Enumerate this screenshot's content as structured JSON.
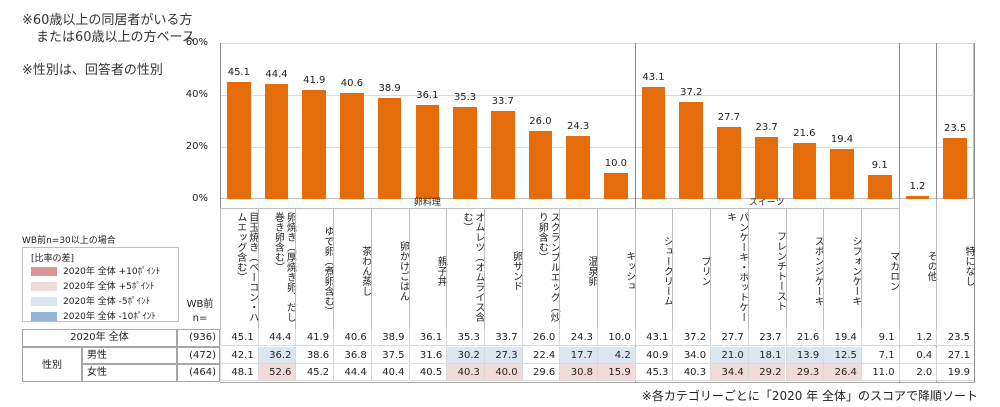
{
  "notes": {
    "base_line1": "※60歳以上の同居者がいる方",
    "base_line2": "または60歳以上の方ベース",
    "gender_note": "※性別は、回答者の性別",
    "sort_note": "※各カテゴリーごとに「2020 年  全体」のスコアで降順ソート"
  },
  "legend": {
    "condition": "WB前n=30以上の場合",
    "title": "[比率の差]",
    "items": [
      {
        "label": "2020年  全体  +10ﾎﾟｲﾝﾄ",
        "color": "#da9694",
        "key": "pos10"
      },
      {
        "label": "2020年  全体  +5ﾎﾟｲﾝﾄ",
        "color": "#f2dcdb",
        "key": "pos5"
      },
      {
        "label": "2020年  全体  -5ﾎﾟｲﾝﾄ",
        "color": "#dce6f1",
        "key": "neg5"
      },
      {
        "label": "2020年  全体  -10ﾎﾟｲﾝﾄ",
        "color": "#95b3d7",
        "key": "neg10"
      }
    ]
  },
  "table": {
    "n_header_1": "WB前",
    "n_header_2": "n=",
    "gender_label": "性別",
    "rows": [
      {
        "label": "2020年  全体",
        "n": "(936)",
        "values": [
          "45.1",
          "44.4",
          "41.9",
          "40.6",
          "38.9",
          "36.1",
          "35.3",
          "33.7",
          "26.0",
          "24.3",
          "10.0",
          "43.1",
          "37.2",
          "27.7",
          "23.7",
          "21.6",
          "19.4",
          "9.1",
          "1.2",
          "23.5"
        ],
        "hl": []
      },
      {
        "label": "男性",
        "n": "(472)",
        "values": [
          "42.1",
          "36.2",
          "38.6",
          "36.8",
          "37.5",
          "31.6",
          "30.2",
          "27.3",
          "22.4",
          "17.7",
          "4.2",
          "40.9",
          "34.0",
          "21.0",
          "18.1",
          "13.9",
          "12.5",
          "7.1",
          "0.4",
          "27.1"
        ],
        "hl": [
          "",
          "neg5",
          "",
          "",
          "",
          "",
          "neg5",
          "neg5",
          "",
          "neg5",
          "neg5",
          "",
          "",
          "neg5",
          "neg5",
          "neg5",
          "neg5",
          "",
          "",
          ""
        ]
      },
      {
        "label": "女性",
        "n": "(464)",
        "values": [
          "48.1",
          "52.6",
          "45.2",
          "44.4",
          "40.4",
          "40.5",
          "40.3",
          "40.0",
          "29.6",
          "30.8",
          "15.9",
          "45.3",
          "40.3",
          "34.4",
          "29.2",
          "29.3",
          "26.4",
          "11.0",
          "2.0",
          "19.9"
        ],
        "hl": [
          "",
          "pos5",
          "",
          "",
          "",
          "",
          "pos5",
          "pos5",
          "",
          "pos5",
          "pos5",
          "",
          "",
          "pos5",
          "pos5",
          "pos5",
          "pos5",
          "",
          "",
          ""
        ]
      }
    ]
  },
  "chart_data": {
    "type": "bar",
    "title": "",
    "ylim": [
      0,
      60
    ],
    "yticks": [
      "0%",
      "20%",
      "40%",
      "60%"
    ],
    "groups": [
      {
        "name": "卵料理",
        "count": 11
      },
      {
        "name": "スイーツ",
        "count": 7
      },
      {
        "name": "",
        "count": 1
      },
      {
        "name": "",
        "count": 1
      }
    ],
    "categories": [
      "目玉焼き（ベーコン・ハムエッグ含む）",
      "卵焼き（厚焼き卵、だし巻き卵含む）",
      "ゆで卵（煮卵含む）",
      "茶わん蒸し",
      "卵かけごはん",
      "親子丼",
      "オムレツ（オムライス含む）",
      "卵サンド",
      "スクランブルエッグ（炒り卵含む）",
      "温泉卵",
      "キッシュ",
      "シュークリーム",
      "プリン",
      "パンケーキ・ホットケーキ",
      "フレンチトースト",
      "スポンジケーキ",
      "シフォンケーキ",
      "マカロン",
      "その他",
      "特になし"
    ],
    "values": [
      45.1,
      44.4,
      41.9,
      40.6,
      38.9,
      36.1,
      35.3,
      33.7,
      26.0,
      24.3,
      10.0,
      43.1,
      37.2,
      27.7,
      23.7,
      21.6,
      19.4,
      9.1,
      1.2,
      23.5
    ],
    "value_labels": [
      "45.1",
      "44.4",
      "41.9",
      "40.6",
      "38.9",
      "36.1",
      "35.3",
      "33.7",
      "26.0",
      "24.3",
      "10.0",
      "43.1",
      "37.2",
      "27.7",
      "23.7",
      "21.6",
      "19.4",
      "9.1",
      "1.2",
      "23.5"
    ],
    "bar_color": "#e46c0a"
  }
}
